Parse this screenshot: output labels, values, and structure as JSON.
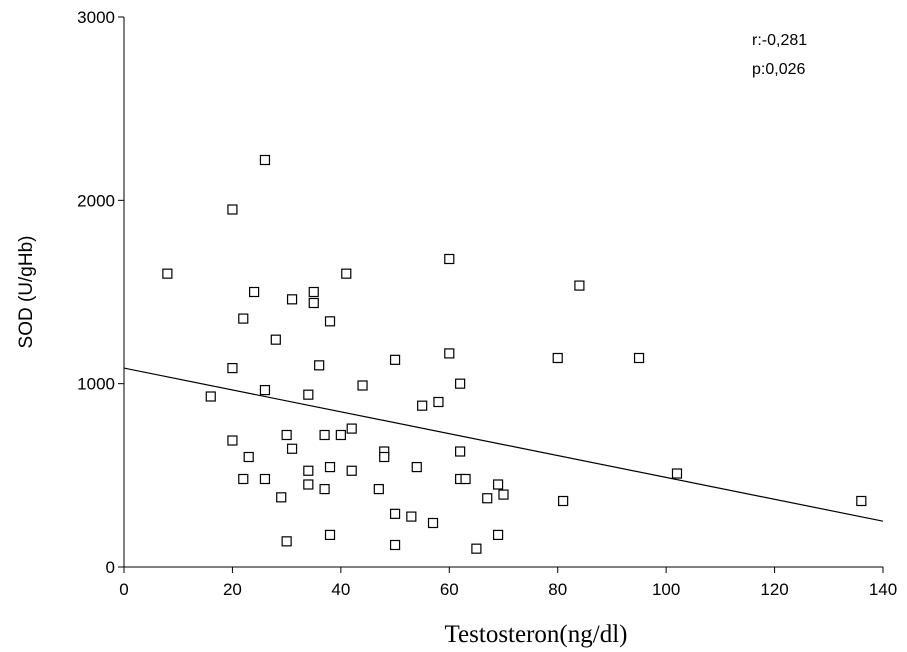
{
  "chart_data": {
    "type": "scatter",
    "xlabel": "Testosteron(ng/dl)",
    "ylabel": "SOD (U/gHb)",
    "xlim": [
      0,
      140
    ],
    "ylim": [
      0,
      3000
    ],
    "x_ticks": [
      "0",
      "20",
      "40",
      "60",
      "80",
      "100",
      "120",
      "140"
    ],
    "y_ticks": [
      "0",
      "1000",
      "2000",
      "3000"
    ],
    "grid": false,
    "annotations": [
      "r:-0,281",
      "p:0,026"
    ],
    "series": [
      {
        "marker": "open-square",
        "points": [
          [
            8,
            1600
          ],
          [
            16,
            930
          ],
          [
            20,
            1950
          ],
          [
            20,
            1085
          ],
          [
            20,
            690
          ],
          [
            22,
            1355
          ],
          [
            22,
            480
          ],
          [
            23,
            600
          ],
          [
            24,
            1500
          ],
          [
            26,
            2220
          ],
          [
            26,
            965
          ],
          [
            26,
            480
          ],
          [
            28,
            1240
          ],
          [
            29,
            380
          ],
          [
            30,
            720
          ],
          [
            30,
            140
          ],
          [
            31,
            1460
          ],
          [
            31,
            645
          ],
          [
            34,
            940
          ],
          [
            34,
            525
          ],
          [
            34,
            450
          ],
          [
            35,
            1500
          ],
          [
            35,
            1440
          ],
          [
            36,
            1100
          ],
          [
            37,
            720
          ],
          [
            37,
            425
          ],
          [
            38,
            1340
          ],
          [
            38,
            545
          ],
          [
            38,
            175
          ],
          [
            40,
            720
          ],
          [
            41,
            1600
          ],
          [
            42,
            755
          ],
          [
            42,
            525
          ],
          [
            44,
            990
          ],
          [
            47,
            425
          ],
          [
            48,
            630
          ],
          [
            48,
            600
          ],
          [
            50,
            1130
          ],
          [
            50,
            290
          ],
          [
            50,
            120
          ],
          [
            53,
            275
          ],
          [
            54,
            545
          ],
          [
            55,
            880
          ],
          [
            57,
            240
          ],
          [
            58,
            900
          ],
          [
            60,
            1680
          ],
          [
            60,
            1165
          ],
          [
            62,
            1000
          ],
          [
            62,
            630
          ],
          [
            62,
            480
          ],
          [
            63,
            480
          ],
          [
            65,
            100
          ],
          [
            67,
            375
          ],
          [
            69,
            450
          ],
          [
            69,
            175
          ],
          [
            70,
            395
          ],
          [
            80,
            1140
          ],
          [
            81,
            360
          ],
          [
            84,
            1535
          ],
          [
            95,
            1140
          ],
          [
            102,
            510
          ],
          [
            136,
            360
          ]
        ]
      }
    ],
    "regression_line": {
      "from": [
        0,
        1085
      ],
      "to": [
        140,
        250
      ]
    }
  }
}
